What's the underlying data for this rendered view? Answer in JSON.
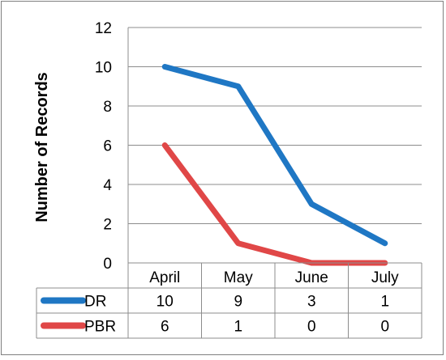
{
  "chart_data": {
    "type": "line",
    "title": "",
    "xlabel": "",
    "ylabel": "Number of Records",
    "ylim": [
      0,
      12
    ],
    "yticks": [
      "0",
      "2",
      "4",
      "6",
      "8",
      "10",
      "12"
    ],
    "grid": true,
    "legend": "data-table-below",
    "categories": [
      "April",
      "May",
      "June",
      "July"
    ],
    "series": [
      {
        "name": "DR",
        "color": "#1f77c4",
        "values": [
          10,
          9,
          3,
          1
        ]
      },
      {
        "name": "PBR",
        "color": "#e04747",
        "values": [
          6,
          1,
          0,
          0
        ]
      }
    ]
  }
}
